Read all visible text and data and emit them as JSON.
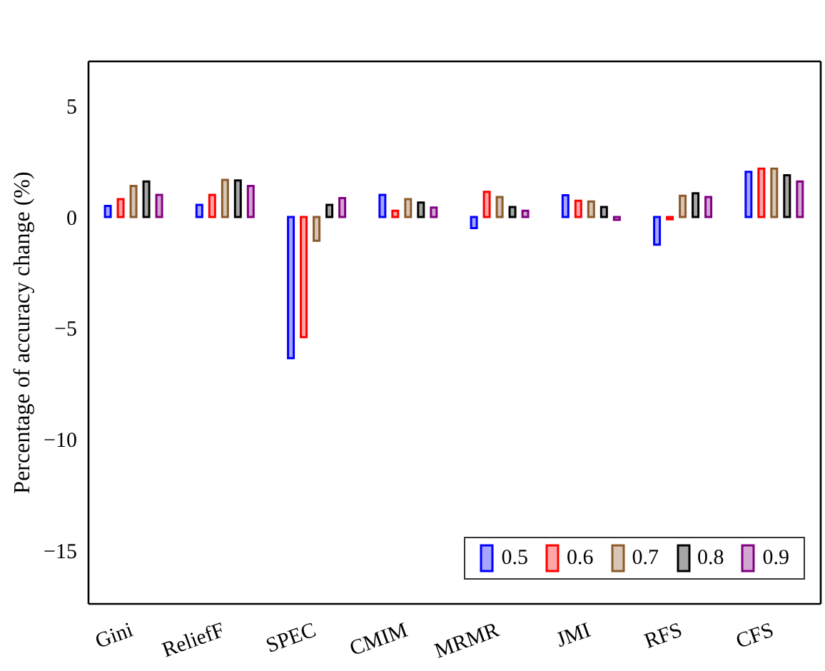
{
  "chart_data": {
    "type": "bar",
    "ylabel": "Percentage of accuracy change (%)",
    "categories": [
      "Gini",
      "ReliefF",
      "SPEC",
      "CMIM",
      "MRMR",
      "JMI",
      "RFS",
      "CFS"
    ],
    "series": [
      {
        "name": "0.5",
        "color": "#0000ff",
        "values": [
          0.5,
          0.55,
          -6.35,
          1.0,
          -0.5,
          0.98,
          -1.24,
          2.03
        ]
      },
      {
        "name": "0.6",
        "color": "#ff0000",
        "values": [
          0.8,
          1.0,
          -5.4,
          0.28,
          1.13,
          0.73,
          -0.1,
          2.18
        ]
      },
      {
        "name": "0.7",
        "color": "#8b5a2b",
        "values": [
          1.4,
          1.67,
          -1.07,
          0.8,
          0.9,
          0.7,
          0.96,
          2.18
        ]
      },
      {
        "name": "0.8",
        "color": "#000000",
        "values": [
          1.6,
          1.65,
          0.55,
          0.65,
          0.45,
          0.45,
          1.07,
          1.88
        ]
      },
      {
        "name": "0.9",
        "color": "#800080",
        "values": [
          1.0,
          1.4,
          0.85,
          0.43,
          0.28,
          -0.13,
          0.9,
          1.6
        ]
      }
    ],
    "ylim": [
      -17.4,
      7
    ],
    "yticks": [
      5,
      0,
      {
        "value": -5,
        "label": "−5"
      },
      {
        "value": -10,
        "label": "−10"
      },
      {
        "value": -15,
        "label": "−15"
      }
    ],
    "grid": false,
    "legend": "bottom right"
  }
}
